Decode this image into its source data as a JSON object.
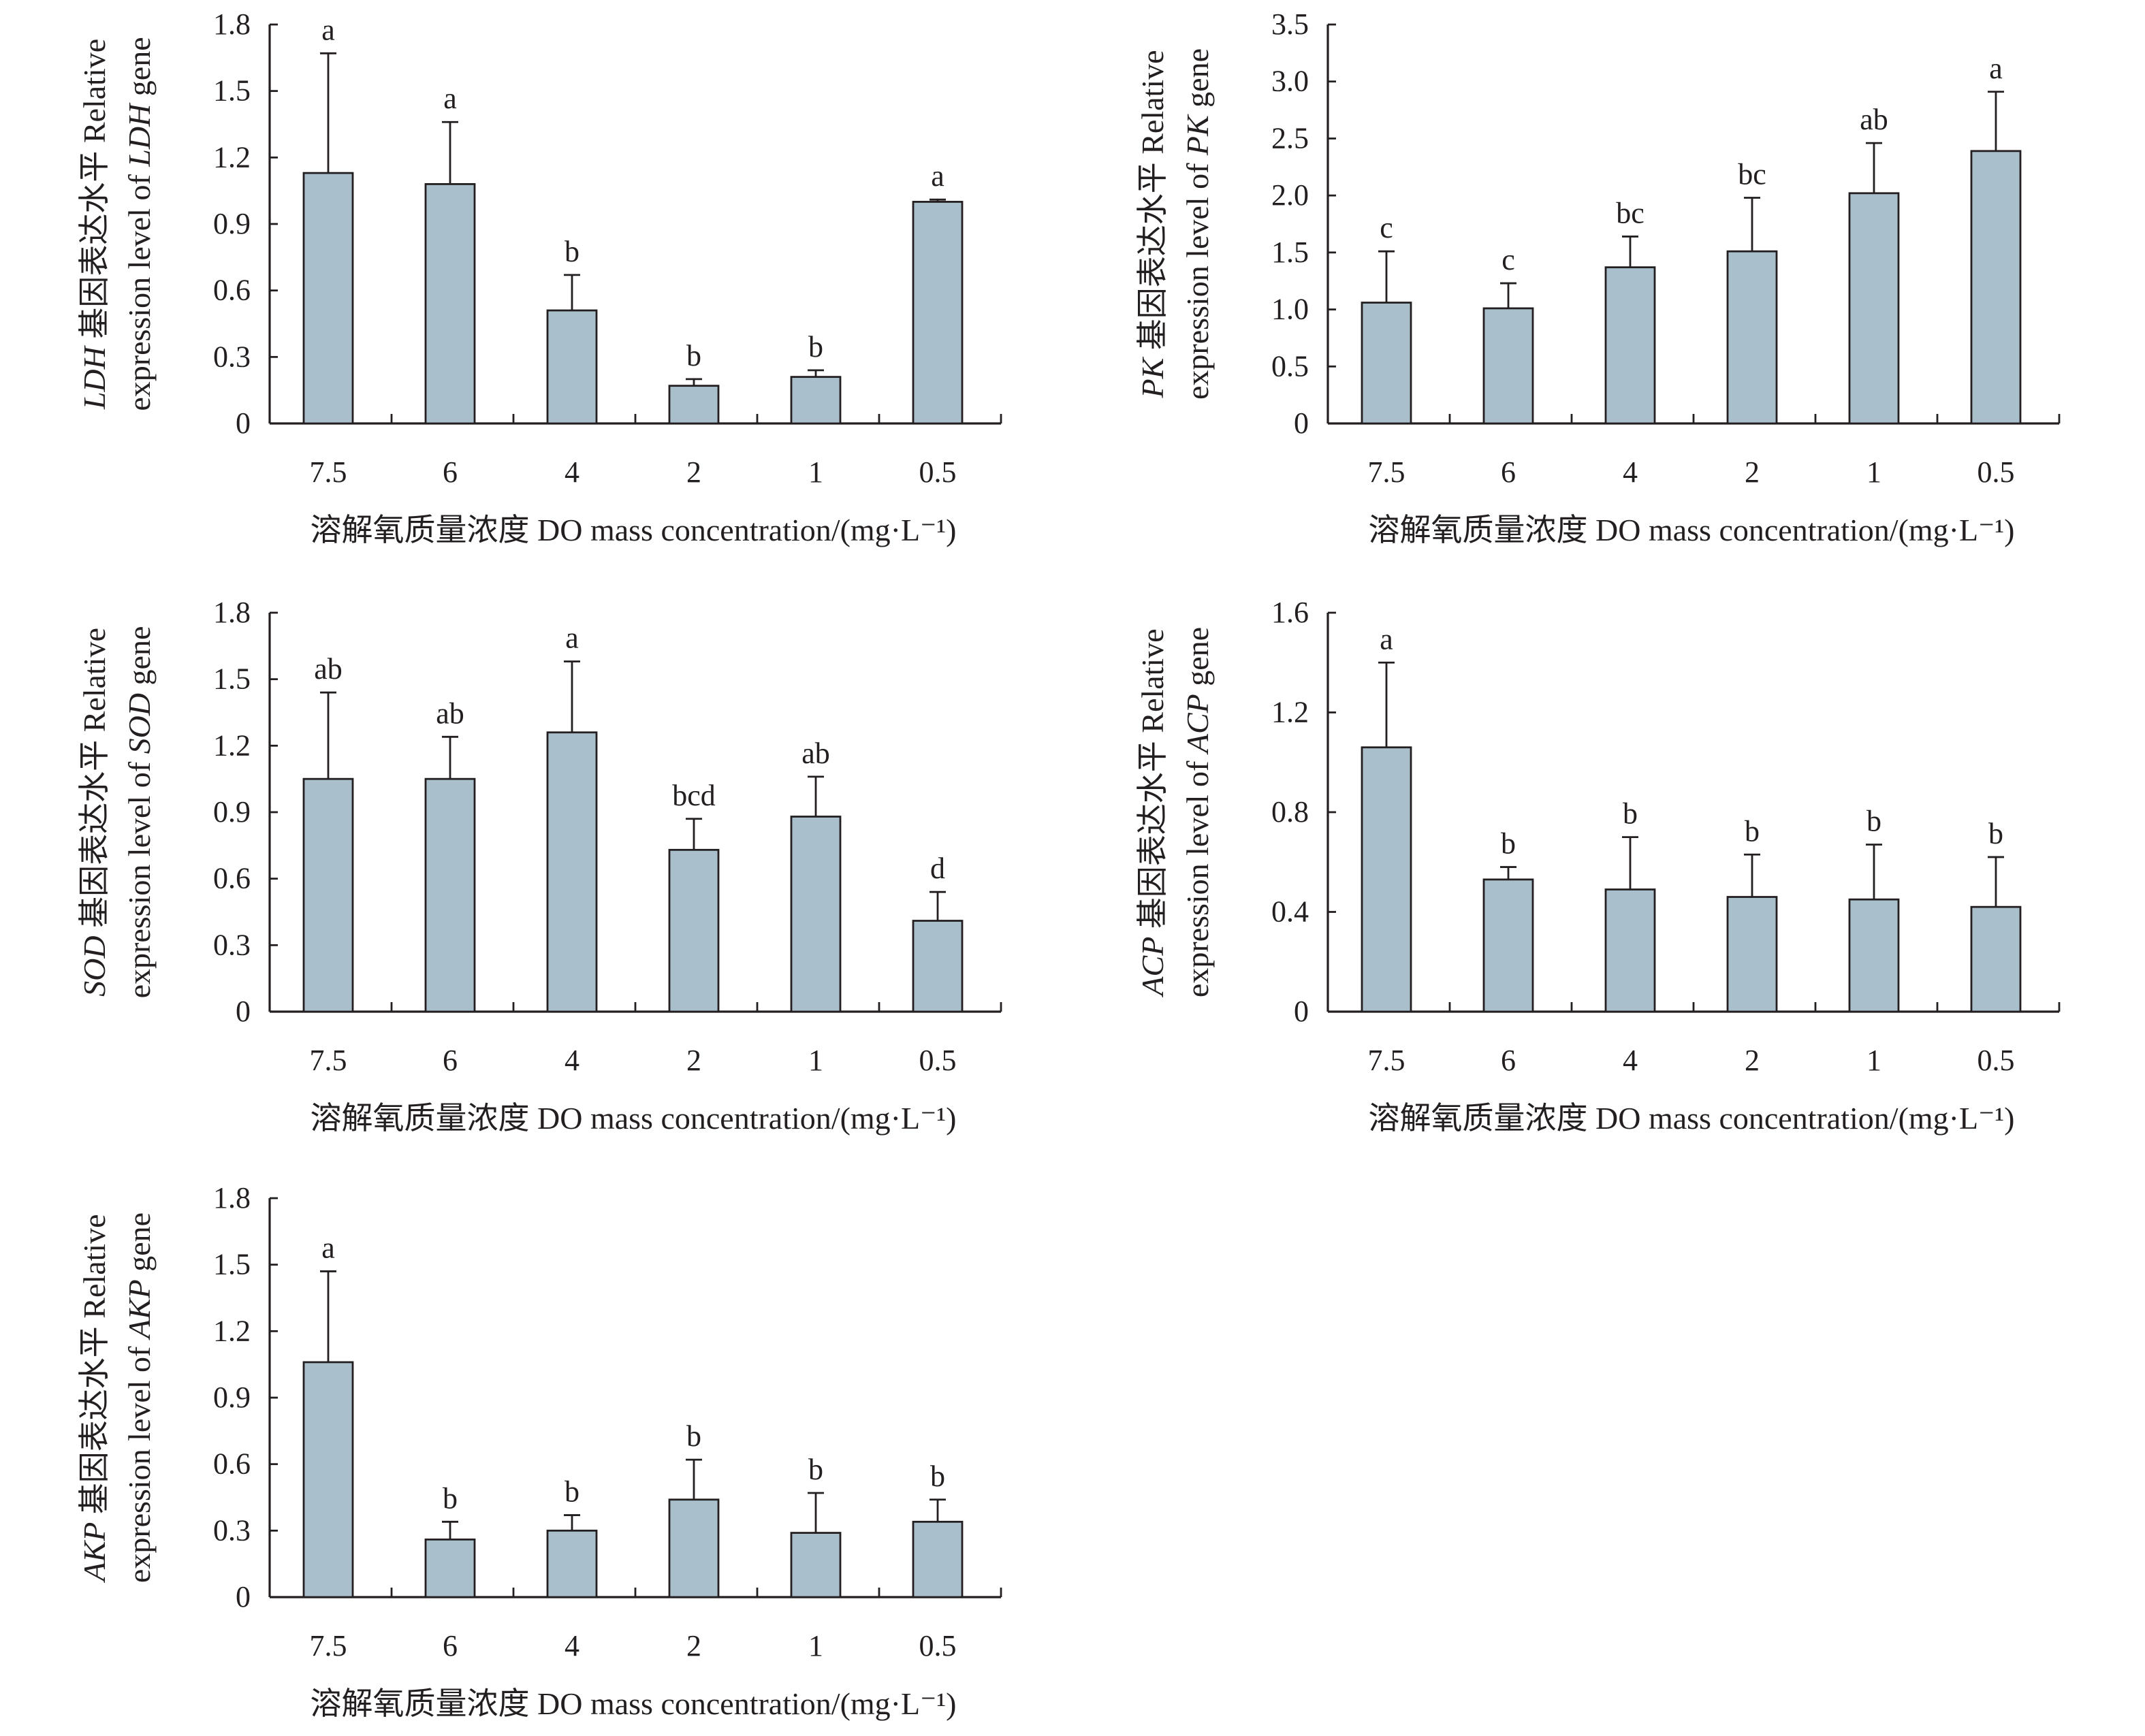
{
  "chart_data": [
    {
      "type": "bar",
      "gene": "LDH",
      "ylabel_mid": " 基因表达水平 Relative",
      "ylabel_pre": "expression level of ",
      "ylabel_post": " gene",
      "xlabel": "溶解氧质量浓度 DO mass concentration/(mg·L⁻¹)",
      "categories": [
        "7.5",
        "6",
        "4",
        "2",
        "1",
        "0.5"
      ],
      "values": [
        1.13,
        1.08,
        0.51,
        0.17,
        0.21,
        1.0
      ],
      "error_top": [
        1.67,
        1.36,
        0.67,
        0.2,
        0.24,
        1.01
      ],
      "letters": [
        "a",
        "a",
        "b",
        "b",
        "b",
        "a"
      ],
      "ylim": [
        0,
        1.8
      ],
      "yticks": [
        "0",
        "0.3",
        "0.6",
        "0.9",
        "1.2",
        "1.5",
        "1.8"
      ]
    },
    {
      "type": "bar",
      "gene": "PK",
      "ylabel_mid": " 基因表达水平 Relative",
      "ylabel_pre": "expression level of ",
      "ylabel_post": " gene",
      "xlabel": "溶解氧质量浓度 DO mass concentration/(mg·L⁻¹)",
      "categories": [
        "7.5",
        "6",
        "4",
        "2",
        "1",
        "0.5"
      ],
      "values": [
        1.06,
        1.01,
        1.37,
        1.51,
        2.02,
        2.39
      ],
      "error_top": [
        1.51,
        1.23,
        1.64,
        1.98,
        2.46,
        2.91
      ],
      "letters": [
        "c",
        "c",
        "bc",
        "bc",
        "ab",
        "a"
      ],
      "ylim": [
        0,
        3.5
      ],
      "yticks": [
        "0",
        "0.5",
        "1.0",
        "1.5",
        "2.0",
        "2.5",
        "3.0",
        "3.5"
      ]
    },
    {
      "type": "bar",
      "gene": "SOD",
      "ylabel_mid": " 基因表达水平 Relative",
      "ylabel_pre": "expression level of ",
      "ylabel_post": " gene",
      "xlabel": "溶解氧质量浓度 DO mass concentration/(mg·L⁻¹)",
      "categories": [
        "7.5",
        "6",
        "4",
        "2",
        "1",
        "0.5"
      ],
      "values": [
        1.05,
        1.05,
        1.26,
        0.73,
        0.88,
        0.41
      ],
      "error_top": [
        1.44,
        1.24,
        1.58,
        0.87,
        1.06,
        0.54
      ],
      "letters": [
        "ab",
        "ab",
        "a",
        "bcd",
        "ab",
        "d"
      ],
      "ylim": [
        0,
        1.8
      ],
      "yticks": [
        "0",
        "0.3",
        "0.6",
        "0.9",
        "1.2",
        "1.5",
        "1.8"
      ]
    },
    {
      "type": "bar",
      "gene": "ACP",
      "ylabel_mid": " 基因表达水平 Relative",
      "ylabel_pre": "expression level of ",
      "ylabel_post": " gene",
      "xlabel": "溶解氧质量浓度 DO mass concentration/(mg·L⁻¹)",
      "categories": [
        "7.5",
        "6",
        "4",
        "2",
        "1",
        "0.5"
      ],
      "values": [
        1.06,
        0.53,
        0.49,
        0.46,
        0.45,
        0.42
      ],
      "error_top": [
        1.4,
        0.58,
        0.7,
        0.63,
        0.67,
        0.62
      ],
      "letters": [
        "a",
        "b",
        "b",
        "b",
        "b",
        "b"
      ],
      "ylim": [
        0,
        1.6
      ],
      "yticks": [
        "0",
        "0.4",
        "0.8",
        "1.2",
        "1.6"
      ]
    },
    {
      "type": "bar",
      "gene": "AKP",
      "ylabel_mid": " 基因表达水平 Relative",
      "ylabel_pre": "expression level of ",
      "ylabel_post": " gene",
      "xlabel": "溶解氧质量浓度 DO mass concentration/(mg·L⁻¹)",
      "categories": [
        "7.5",
        "6",
        "4",
        "2",
        "1",
        "0.5"
      ],
      "values": [
        1.06,
        0.26,
        0.3,
        0.44,
        0.29,
        0.34
      ],
      "error_top": [
        1.47,
        0.34,
        0.37,
        0.62,
        0.47,
        0.44
      ],
      "letters": [
        "a",
        "b",
        "b",
        "b",
        "b",
        "b"
      ],
      "ylim": [
        0,
        1.8
      ],
      "yticks": [
        "0",
        "0.3",
        "0.6",
        "0.9",
        "1.2",
        "1.5",
        "1.8"
      ]
    }
  ],
  "colors": {
    "bar": "#a9bfcc",
    "line": "#231f20"
  }
}
